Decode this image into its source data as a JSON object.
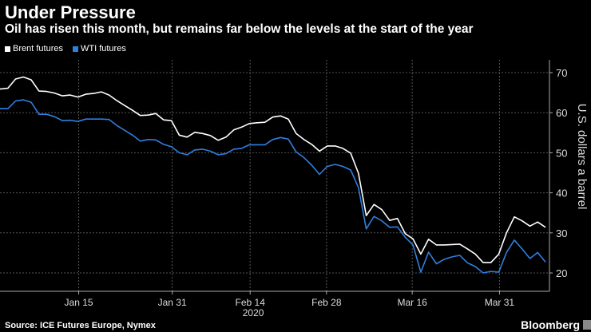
{
  "header": {
    "title": "Under Pressure",
    "subtitle": "Oil has risen this month, but remains far below the levels at the start of the year"
  },
  "footer": {
    "source": "Source: ICE Futures Europe, Nymex",
    "logo": "Bloomberg"
  },
  "chart_data": {
    "type": "line",
    "title": "Under Pressure",
    "ylabel": "U.S. dollars a barrel",
    "xlabel": "2020",
    "ylim": [
      17,
      73
    ],
    "yticks": [
      20,
      30,
      40,
      50,
      60,
      70
    ],
    "xticks": [
      {
        "label": "Jan 15",
        "index": 10.1
      },
      {
        "label": "Jan 31",
        "index": 22.1
      },
      {
        "label": "Feb 14",
        "index": 32.1
      },
      {
        "label": "Feb 28",
        "index": 41.9
      },
      {
        "label": "Mar 16",
        "index": 52.9
      },
      {
        "label": "Mar 31",
        "index": 64.1
      }
    ],
    "year_label": "2020",
    "legend_position": "top-left",
    "grid": true,
    "series": [
      {
        "name": "Brent futures",
        "color": "#ffffff",
        "values": [
          65.9,
          66.1,
          68.4,
          68.9,
          68.2,
          65.4,
          65.3,
          64.9,
          64.2,
          64.4,
          63.9,
          64.6,
          64.8,
          65.2,
          64.4,
          63.0,
          61.8,
          60.6,
          59.3,
          59.4,
          59.8,
          58.2,
          58.0,
          54.4,
          53.9,
          55.1,
          54.8,
          54.3,
          53.1,
          53.9,
          55.7,
          56.4,
          57.3,
          57.5,
          57.6,
          58.9,
          59.2,
          58.4,
          54.8,
          53.3,
          52.1,
          50.4,
          51.7,
          51.7,
          51.1,
          49.9,
          44.9,
          34.3,
          37.1,
          35.8,
          33.1,
          33.6,
          29.8,
          28.5,
          24.7,
          28.4,
          27.0,
          27.0,
          27.1,
          27.2,
          26.0,
          24.7,
          22.6,
          22.6,
          24.7,
          30.0,
          34.0,
          33.0,
          31.7,
          32.7,
          31.4
        ]
      },
      {
        "name": "WTI futures",
        "color": "#2f7fe0",
        "values": [
          61.0,
          61.0,
          62.9,
          63.2,
          62.6,
          59.6,
          59.6,
          59.0,
          58.0,
          58.1,
          57.8,
          58.4,
          58.4,
          58.4,
          58.3,
          56.8,
          55.6,
          54.4,
          52.9,
          53.3,
          53.2,
          52.1,
          51.5,
          50.0,
          49.5,
          50.7,
          50.9,
          50.4,
          49.5,
          49.8,
          50.9,
          51.1,
          52.0,
          52.0,
          52.0,
          53.3,
          53.8,
          53.4,
          50.2,
          48.8,
          46.9,
          44.6,
          46.6,
          47.1,
          46.6,
          45.7,
          41.3,
          31.0,
          34.1,
          33.0,
          31.4,
          31.5,
          28.9,
          27.0,
          20.2,
          25.2,
          22.3,
          23.4,
          24.0,
          24.4,
          22.5,
          21.6,
          20.0,
          20.4,
          20.2,
          25.1,
          28.2,
          26.0,
          23.6,
          25.1,
          22.7
        ]
      }
    ]
  }
}
